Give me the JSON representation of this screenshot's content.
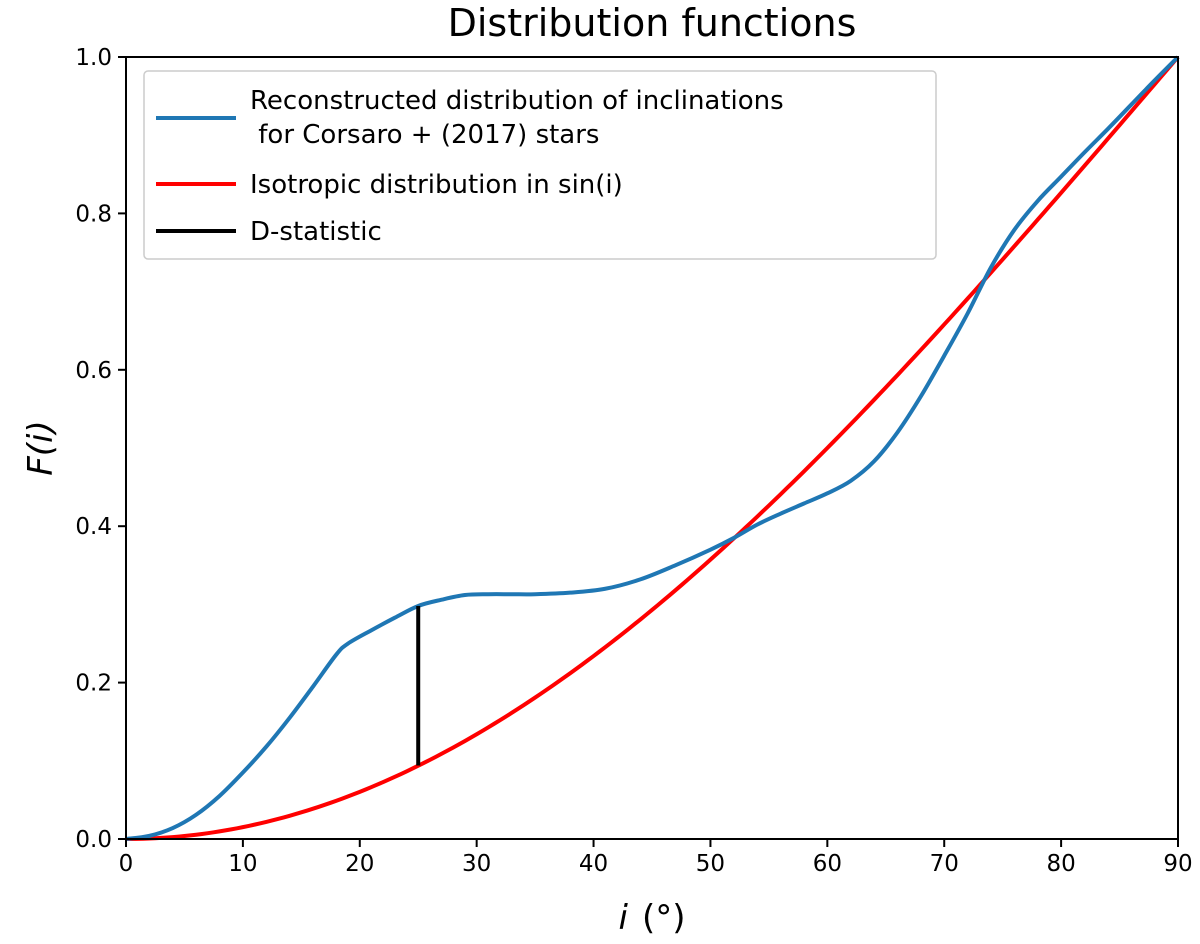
{
  "chart_data": {
    "type": "line",
    "title": "Distribution functions",
    "xlabel": {
      "var": "i",
      "unit": "(°)"
    },
    "ylabel": {
      "var": "F",
      "arg": "(i)"
    },
    "xlim": [
      0,
      90
    ],
    "ylim": [
      0,
      1
    ],
    "xticks": [
      0,
      10,
      20,
      30,
      40,
      50,
      60,
      70,
      80,
      90
    ],
    "xtick_labels": [
      "0",
      "10",
      "20",
      "30",
      "40",
      "50",
      "60",
      "70",
      "80",
      "90"
    ],
    "yticks": [
      0,
      0.2,
      0.4,
      0.6,
      0.8,
      1.0
    ],
    "ytick_labels": [
      "0.0",
      "0.2",
      "0.4",
      "0.6",
      "0.8",
      "1.0"
    ],
    "grid": false,
    "legend_position": "upper-left",
    "series": [
      {
        "name": "Reconstructed distribution of inclinations",
        "name_line2": " for Corsaro + (2017) stars",
        "color": "#1f77b4",
        "style": "line",
        "x": [
          0,
          2,
          4,
          6,
          8,
          10,
          12,
          14,
          16,
          18,
          19,
          21,
          23,
          25,
          27,
          29,
          31,
          33,
          35,
          38,
          41,
          44,
          47,
          50,
          52,
          54,
          56,
          58,
          60,
          62,
          64,
          66,
          68,
          70,
          72,
          74,
          76,
          78,
          80,
          82,
          84,
          86,
          88,
          90
        ],
        "y": [
          0.0,
          0.004,
          0.014,
          0.031,
          0.055,
          0.085,
          0.118,
          0.155,
          0.195,
          0.236,
          0.25,
          0.267,
          0.283,
          0.298,
          0.306,
          0.312,
          0.313,
          0.313,
          0.313,
          0.315,
          0.32,
          0.332,
          0.35,
          0.37,
          0.385,
          0.402,
          0.416,
          0.429,
          0.442,
          0.458,
          0.483,
          0.52,
          0.566,
          0.618,
          0.672,
          0.731,
          0.779,
          0.816,
          0.847,
          0.878,
          0.908,
          0.939,
          0.97,
          1.0
        ]
      },
      {
        "name": "Isotropic distribution in sin(i)",
        "color": "#ff0000",
        "style": "line",
        "function": "1 - cos(i)"
      },
      {
        "name": "D-statistic",
        "color": "#000000",
        "style": "vertical-segment",
        "x": [
          25,
          25
        ],
        "y": [
          0.094,
          0.298
        ]
      }
    ]
  }
}
